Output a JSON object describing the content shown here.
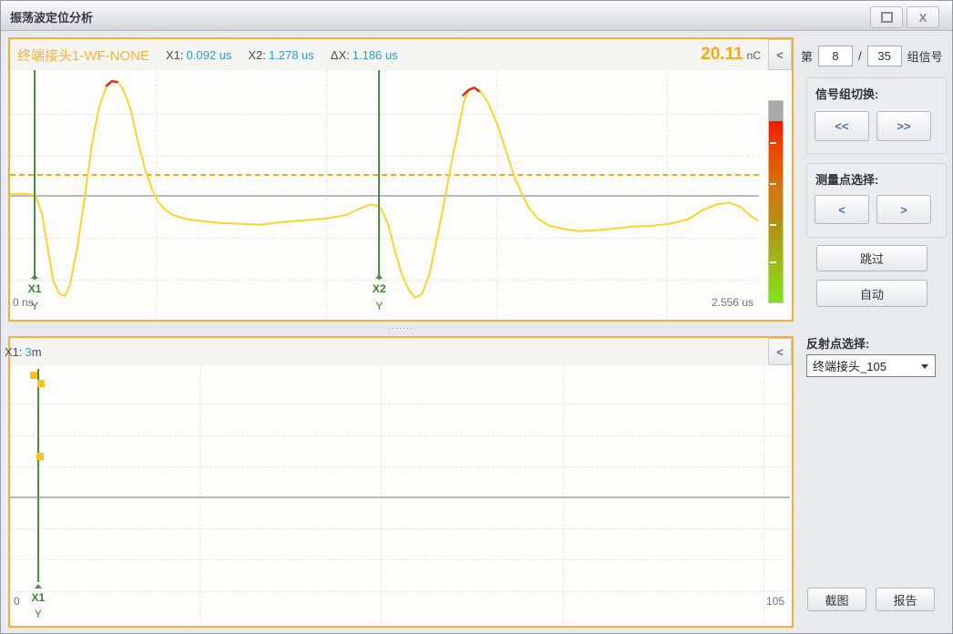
{
  "window": {
    "title": "振荡波定位分析",
    "close_glyph": "X"
  },
  "top_chart": {
    "title": "终端接头1-WF-NONE",
    "measurements": [
      {
        "label": "X1:",
        "value": "0.092 us"
      },
      {
        "label": "X2:",
        "value": "1.278 us"
      },
      {
        "label": "ΔX:",
        "value": "1.186 us"
      }
    ],
    "peak_value": "20.11",
    "peak_unit": "nC",
    "collapse_glyph": "<",
    "axis_start": "0 ns",
    "axis_end": "2.556 us",
    "cursor1": {
      "name": "X1",
      "axis": "Y"
    },
    "cursor2": {
      "name": "X2",
      "axis": "Y"
    }
  },
  "splitter_handle": "·······",
  "bottom_chart": {
    "header_label": "X1:",
    "header_value": "3",
    "header_unit": "m",
    "collapse_glyph": "<",
    "axis_start": "0",
    "axis_end": "105",
    "cursor1": {
      "name": "X1",
      "axis": "Y"
    }
  },
  "sidebar": {
    "group_prefix": "第",
    "group_current": "8",
    "group_separator": "/",
    "group_total": "35",
    "group_suffix": "组信号",
    "signal_group": {
      "label": "信号组切换:",
      "prev": "<<",
      "next": ">>"
    },
    "measure_point": {
      "label": "测量点选择:",
      "prev": "<",
      "next": ">"
    },
    "skip": "跳过",
    "auto": "自动",
    "reflection_label": "反射点选择:",
    "reflection_value": "终端接头_105",
    "screenshot": "截图",
    "report": "报告"
  },
  "colors": {
    "panel_border_orange": "#f2b13c",
    "waveform_yellow": "#f7d631",
    "peak_red": "#e8281c",
    "cursor_green": "#4d8d44",
    "value_blue": "#3599cf",
    "peak_text_orange": "#f7a81b",
    "chart_title_orange": "#f0b63c",
    "marker_yellow": "#f6c51e",
    "threshold_orange": "#f5a81e"
  },
  "chart_data": [
    {
      "name": "oscillating-wave",
      "type": "line",
      "title": "终端接头1-WF-NONE",
      "x_range": {
        "start": 0,
        "end": 2.556,
        "unit": "us"
      },
      "x_axis_labels": [
        "0 ns",
        "2.556 us"
      ],
      "cursors": [
        {
          "name": "X1",
          "value_us": 0.092,
          "frac_x": 0.033
        },
        {
          "name": "X2",
          "value_us": 1.278,
          "frac_x": 0.493
        }
      ],
      "delta_x_us": 1.186,
      "peak_charge": {
        "value": 20.11,
        "unit": "nC"
      },
      "grid": true,
      "threshold_line_frac_y": 0.416,
      "zero_line_frac_y": 0.504,
      "series": [
        {
          "name": "pd-pulse-waveform",
          "color": "#f7d631",
          "points_norm": [
            [
              0.0,
              0.498
            ],
            [
              0.015,
              0.494
            ],
            [
              0.027,
              0.498
            ],
            [
              0.034,
              0.502
            ],
            [
              0.043,
              0.579
            ],
            [
              0.051,
              0.725
            ],
            [
              0.058,
              0.846
            ],
            [
              0.066,
              0.897
            ],
            [
              0.073,
              0.905
            ],
            [
              0.08,
              0.861
            ],
            [
              0.09,
              0.707
            ],
            [
              0.1,
              0.505
            ],
            [
              0.109,
              0.304
            ],
            [
              0.119,
              0.147
            ],
            [
              0.129,
              0.066
            ],
            [
              0.136,
              0.044
            ],
            [
              0.144,
              0.048
            ],
            [
              0.151,
              0.077
            ],
            [
              0.161,
              0.157
            ],
            [
              0.17,
              0.275
            ],
            [
              0.18,
              0.396
            ],
            [
              0.19,
              0.48
            ],
            [
              0.197,
              0.524
            ],
            [
              0.207,
              0.56
            ],
            [
              0.219,
              0.582
            ],
            [
              0.237,
              0.597
            ],
            [
              0.255,
              0.604
            ],
            [
              0.28,
              0.612
            ],
            [
              0.304,
              0.615
            ],
            [
              0.335,
              0.619
            ],
            [
              0.365,
              0.608
            ],
            [
              0.395,
              0.601
            ],
            [
              0.426,
              0.593
            ],
            [
              0.45,
              0.579
            ],
            [
              0.468,
              0.553
            ],
            [
              0.481,
              0.538
            ],
            [
              0.489,
              0.542
            ],
            [
              0.496,
              0.557
            ],
            [
              0.505,
              0.619
            ],
            [
              0.513,
              0.714
            ],
            [
              0.523,
              0.817
            ],
            [
              0.533,
              0.883
            ],
            [
              0.541,
              0.912
            ],
            [
              0.55,
              0.897
            ],
            [
              0.56,
              0.817
            ],
            [
              0.569,
              0.689
            ],
            [
              0.579,
              0.542
            ],
            [
              0.589,
              0.377
            ],
            [
              0.599,
              0.231
            ],
            [
              0.606,
              0.128
            ],
            [
              0.613,
              0.077
            ],
            [
              0.62,
              0.07
            ],
            [
              0.628,
              0.084
            ],
            [
              0.638,
              0.128
            ],
            [
              0.65,
              0.212
            ],
            [
              0.662,
              0.322
            ],
            [
              0.674,
              0.432
            ],
            [
              0.684,
              0.498
            ],
            [
              0.693,
              0.553
            ],
            [
              0.706,
              0.597
            ],
            [
              0.72,
              0.623
            ],
            [
              0.74,
              0.637
            ],
            [
              0.76,
              0.645
            ],
            [
              0.785,
              0.641
            ],
            [
              0.809,
              0.634
            ],
            [
              0.833,
              0.626
            ],
            [
              0.858,
              0.623
            ],
            [
              0.882,
              0.615
            ],
            [
              0.906,
              0.597
            ],
            [
              0.925,
              0.56
            ],
            [
              0.943,
              0.538
            ],
            [
              0.961,
              0.531
            ],
            [
              0.976,
              0.549
            ],
            [
              0.988,
              0.582
            ],
            [
              0.998,
              0.601
            ]
          ]
        }
      ],
      "peak_marker_color": "#e8281c",
      "peak_markers_norm": [
        [
          [
            0.129,
            0.062
          ],
          [
            0.136,
            0.044
          ],
          [
            0.143,
            0.047
          ]
        ],
        [
          [
            0.605,
            0.1
          ],
          [
            0.613,
            0.078
          ],
          [
            0.62,
            0.07
          ],
          [
            0.626,
            0.084
          ]
        ]
      ],
      "colorbar": {
        "cap_color": "#a9a9a9",
        "colors_top_to_bottom": [
          "#ee1a00",
          "#e84e00",
          "#d07612",
          "#b29316",
          "#9cbd1a",
          "#7fe51e"
        ]
      }
    },
    {
      "name": "reflection-location-map",
      "type": "scatter",
      "x_range": {
        "start": 0,
        "end": 105,
        "unit": "m"
      },
      "x_axis_labels": [
        "0",
        "105"
      ],
      "cursor": {
        "name": "X1",
        "value_m": 3,
        "frac_x": 0.036
      },
      "zero_line_frac_y": 0.507,
      "grid": true,
      "marker_color": "#f6c51e",
      "markers_norm": [
        [
          0.03,
          0.038
        ],
        [
          0.04,
          0.07
        ],
        [
          0.038,
          0.35
        ]
      ]
    }
  ]
}
